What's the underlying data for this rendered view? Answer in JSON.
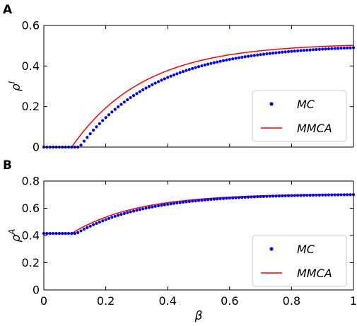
{
  "colors": {
    "mc": "#0000ff",
    "mmca": "#ff0000",
    "axes": "#000000",
    "legend_border": "#cccccc"
  },
  "chart_data": [
    {
      "type": "line",
      "panel_label": "A",
      "xlabel": "",
      "ylabel": "ρ",
      "ylabel_sup": "I",
      "xlim": [
        0,
        1
      ],
      "ylim": [
        0,
        0.6
      ],
      "yticks": [
        0,
        0.2,
        0.4,
        0.6
      ],
      "ytick_labels": [
        "0",
        "0.2",
        "0.4",
        "0.6"
      ],
      "xticks": [
        0,
        0.2,
        0.4,
        0.6,
        0.8,
        1
      ],
      "xtick_labels": [],
      "legend": {
        "position": "lower-right",
        "entries": [
          "MC",
          "MMCA"
        ]
      },
      "grid": false,
      "series": [
        {
          "name": "MC",
          "kind": "markers",
          "color": "#0000ff",
          "model": {
            "threshold": 0.115,
            "a": 0.505,
            "b": 0.25,
            "plateau": 0
          }
        },
        {
          "name": "MMCA",
          "kind": "line",
          "color": "#ff0000",
          "model": {
            "threshold": 0.09,
            "a": 0.512,
            "b": 0.232,
            "plateau": 0
          }
        }
      ],
      "sample_points": [
        {
          "x": 0.1,
          "MC": 0.0,
          "MMCA": 0.014
        },
        {
          "x": 0.2,
          "MC": 0.15,
          "MMCA": 0.17
        },
        {
          "x": 0.4,
          "MC": 0.34,
          "MMCA": 0.355
        },
        {
          "x": 0.6,
          "MC": 0.42,
          "MMCA": 0.43
        },
        {
          "x": 0.8,
          "MC": 0.46,
          "MMCA": 0.47
        },
        {
          "x": 1.0,
          "MC": 0.485,
          "MMCA": 0.495
        }
      ]
    },
    {
      "type": "line",
      "panel_label": "B",
      "xlabel": "β",
      "ylabel": "ρ",
      "ylabel_sup": "A",
      "xlim": [
        0,
        1
      ],
      "ylim": [
        0,
        0.8
      ],
      "yticks": [
        0,
        0.2,
        0.4,
        0.6,
        0.8
      ],
      "ytick_labels": [
        "0",
        "0.2",
        "0.4",
        "0.6",
        "0.8"
      ],
      "xticks": [
        0,
        0.2,
        0.4,
        0.6,
        0.8,
        1
      ],
      "xtick_labels": [
        "0",
        "0.2",
        "0.4",
        "0.6",
        "0.8",
        "1"
      ],
      "legend": {
        "position": "lower-right",
        "entries": [
          "MC",
          "MMCA"
        ]
      },
      "grid": false,
      "series": [
        {
          "name": "MC",
          "kind": "markers",
          "color": "#0000ff",
          "model": {
            "threshold": 0.105,
            "a": 0.29,
            "b": 0.22,
            "plateau": 0.415
          }
        },
        {
          "name": "MMCA",
          "kind": "line",
          "color": "#ff0000",
          "model": {
            "threshold": 0.09,
            "a": 0.292,
            "b": 0.208,
            "plateau": 0.415
          }
        }
      ],
      "sample_points": [
        {
          "x": 0.05,
          "MC": 0.415,
          "MMCA": 0.415
        },
        {
          "x": 0.2,
          "MC": 0.51,
          "MMCA": 0.52
        },
        {
          "x": 0.4,
          "MC": 0.6,
          "MMCA": 0.61
        },
        {
          "x": 0.6,
          "MC": 0.65,
          "MMCA": 0.66
        },
        {
          "x": 0.8,
          "MC": 0.675,
          "MMCA": 0.68
        },
        {
          "x": 1.0,
          "MC": 0.69,
          "MMCA": 0.695
        }
      ]
    }
  ]
}
